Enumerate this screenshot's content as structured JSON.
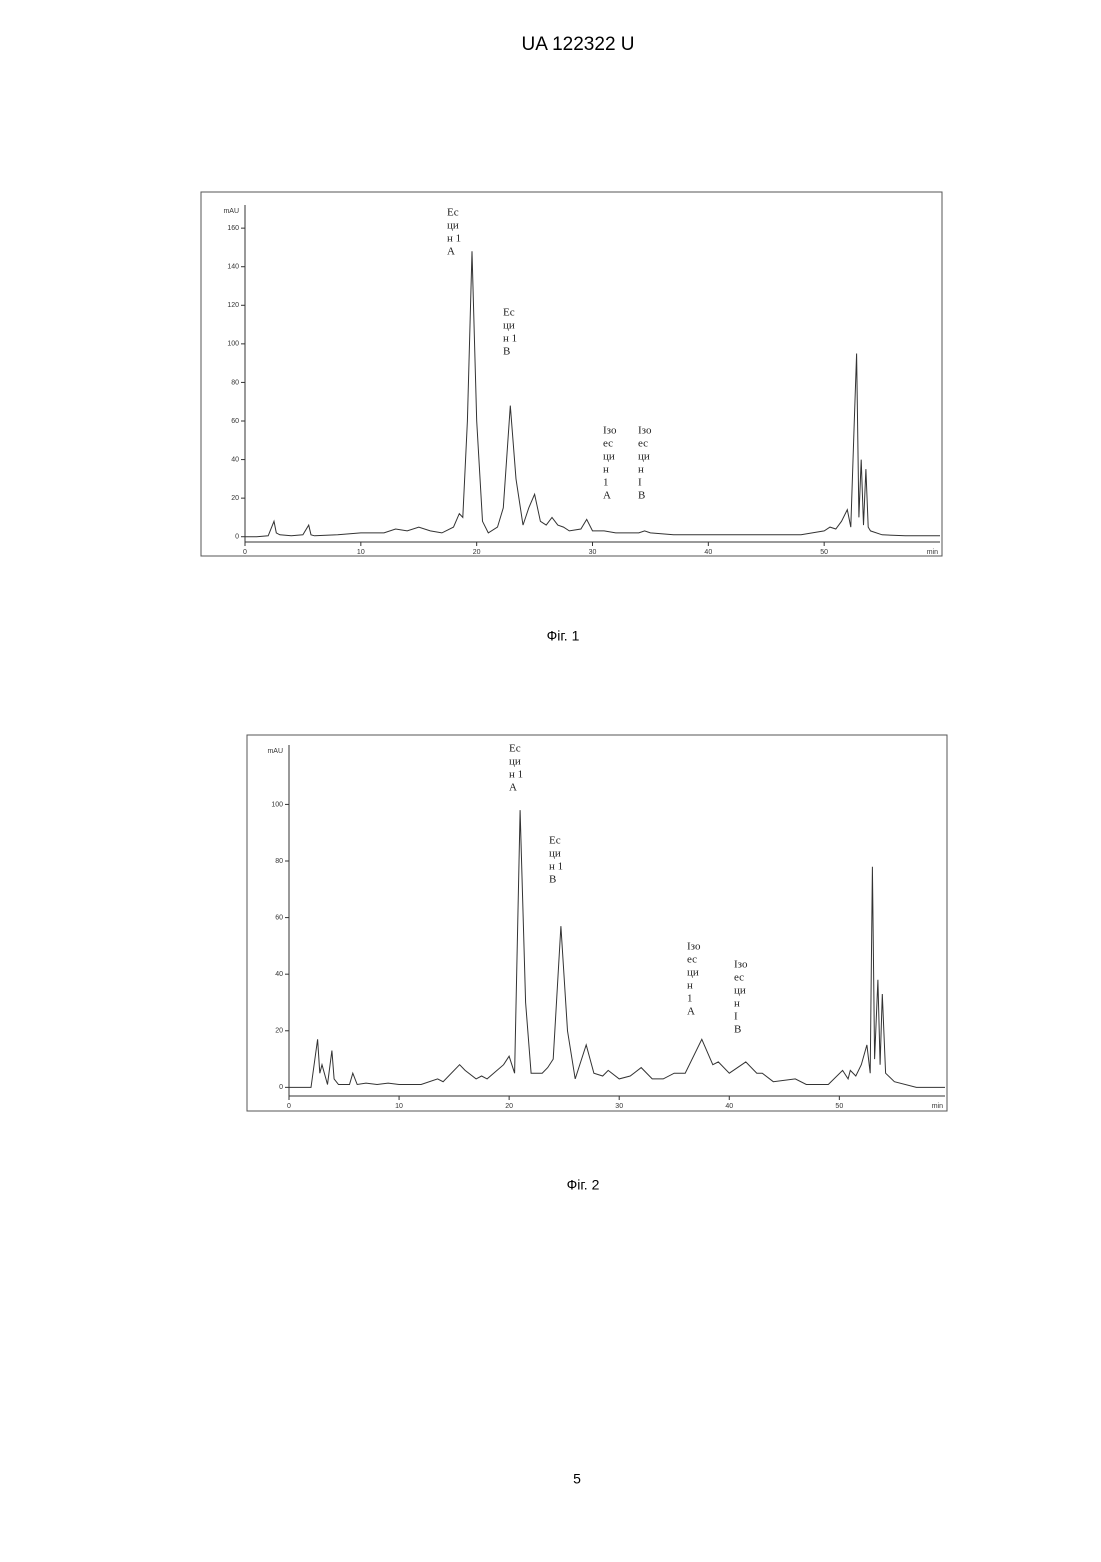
{
  "header": "UA   122322   U",
  "page_number": "5",
  "chart_data": [
    {
      "type": "line",
      "caption": "Фіг. 1",
      "y_label": "mAU",
      "x_label": "min",
      "color": "#333333",
      "xlim": [
        0,
        60
      ],
      "ylim": [
        -10,
        172
      ],
      "xticks": [
        0,
        10,
        20,
        30,
        40,
        50
      ],
      "yticks": [
        0,
        20,
        40,
        60,
        80,
        100,
        120,
        140,
        160
      ],
      "x": [
        0,
        1,
        2,
        2.5,
        2.7,
        3,
        4,
        5,
        5.5,
        5.7,
        6,
        8,
        10,
        12,
        13,
        14,
        15,
        16,
        17,
        18,
        18.5,
        18.8,
        19.2,
        19.6,
        20,
        20.5,
        21,
        21.8,
        22.3,
        22.9,
        23.4,
        24,
        24.5,
        25,
        25.5,
        26,
        26.5,
        27,
        27.5,
        28,
        29,
        29.5,
        30,
        31,
        32,
        33,
        34,
        34.5,
        35,
        37,
        40,
        45,
        48,
        50,
        50.5,
        51,
        51.5,
        52,
        52.3,
        52.6,
        52.8,
        53,
        53.2,
        53.4,
        53.6,
        53.8,
        54,
        55,
        57,
        60
      ],
      "values": [
        0,
        0,
        0.5,
        8,
        2,
        1,
        0.5,
        1,
        6,
        1,
        0.5,
        1,
        2,
        2,
        4,
        3,
        5,
        3,
        2,
        5,
        12,
        10,
        60,
        148,
        60,
        8,
        2,
        5,
        15,
        68,
        30,
        6,
        15,
        22,
        8,
        6,
        10,
        6,
        5,
        3,
        4,
        9,
        3,
        3,
        2,
        2,
        2,
        3,
        2,
        1,
        1,
        1,
        1,
        3,
        5,
        4,
        8,
        14,
        5,
        60,
        95,
        10,
        40,
        6,
        35,
        5,
        3,
        1,
        0.5,
        0.5
      ],
      "annotations": [
        [
          "Ес",
          "ци",
          "н 1",
          "А"
        ],
        [
          "Ес",
          "ци",
          "н 1",
          "В"
        ],
        [
          "Ізо",
          "ес",
          "ци",
          "н",
          "1",
          "А"
        ],
        [
          "Ізо",
          "ес",
          "ци",
          "н",
          "І",
          "В"
        ]
      ]
    },
    {
      "type": "line",
      "caption": "Фіг. 2",
      "y_label": "mAU",
      "x_label": "min",
      "color": "#333333",
      "xlim": [
        0,
        59.6
      ],
      "ylim": [
        -8,
        121
      ],
      "xticks": [
        0,
        10,
        20,
        30,
        40,
        50
      ],
      "yticks": [
        0,
        20,
        40,
        60,
        80,
        100
      ],
      "x": [
        0,
        2,
        2.6,
        2.8,
        3,
        3.5,
        3.9,
        4.1,
        4.5,
        5.5,
        5.8,
        6.2,
        7,
        8,
        9,
        10,
        12,
        13.5,
        14,
        15.5,
        16,
        17,
        17.5,
        18,
        19.5,
        20,
        20.5,
        21,
        21.5,
        22,
        23,
        23.5,
        24,
        24.7,
        25.3,
        26,
        27,
        27.7,
        28.5,
        29,
        30,
        31,
        32,
        33,
        34,
        35,
        36,
        37.5,
        38.5,
        39,
        40,
        41.5,
        42.5,
        43,
        44,
        46,
        47,
        49,
        50.3,
        50.8,
        51,
        51.5,
        52,
        52.5,
        52.8,
        53,
        53.2,
        53.5,
        53.7,
        53.9,
        54.2,
        55,
        57,
        59.6
      ],
      "values": [
        0,
        0,
        17,
        5,
        8,
        1,
        13,
        3,
        1,
        1,
        5,
        1,
        1.5,
        1,
        1.5,
        1,
        1,
        3,
        2,
        8,
        6,
        3,
        4,
        3,
        8,
        11,
        5,
        98,
        30,
        5,
        5,
        7,
        10,
        57,
        20,
        3,
        15,
        5,
        4,
        6,
        3,
        4,
        7,
        3,
        3,
        5,
        5,
        17,
        8,
        9,
        5,
        9,
        5,
        5,
        2,
        3,
        1,
        1,
        6,
        3,
        6,
        4,
        8,
        15,
        5,
        78,
        10,
        38,
        8,
        33,
        5,
        2,
        0,
        0
      ],
      "annotations": [
        [
          "Ес",
          "ци",
          "н 1",
          "А"
        ],
        [
          "Ес",
          "ци",
          "н 1",
          "В"
        ],
        [
          "Ізо",
          "ес",
          "ци",
          "н",
          "1",
          "А"
        ],
        [
          "Ізо",
          "ес",
          "ци",
          "н",
          "І",
          "В"
        ]
      ]
    }
  ]
}
